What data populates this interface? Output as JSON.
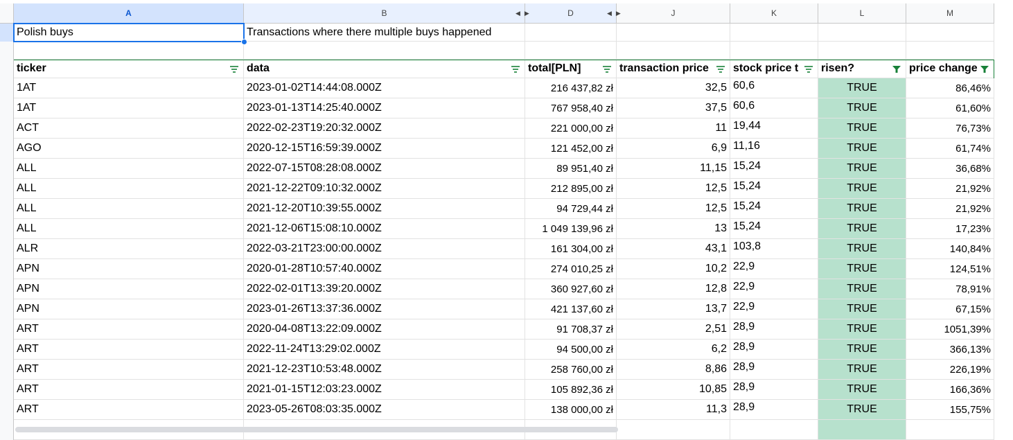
{
  "columns": [
    {
      "letter": "A"
    },
    {
      "letter": "B"
    },
    {
      "letter": "D"
    },
    {
      "letter": "J"
    },
    {
      "letter": "K"
    },
    {
      "letter": "L"
    },
    {
      "letter": "M"
    }
  ],
  "row1": {
    "a": "Polish buys",
    "b": "Transactions where there multiple buys happened"
  },
  "headers": [
    "ticker",
    "data",
    "total[PLN]",
    "transaction price",
    "stock price t",
    "risen?",
    "price change"
  ],
  "rows": [
    [
      "1AT",
      "2023-01-02T14:44:08.000Z",
      "216 437,82 zł",
      "32,5",
      "60,6",
      "TRUE",
      "86,46%"
    ],
    [
      "1AT",
      "2023-01-13T14:25:40.000Z",
      "767 958,40 zł",
      "37,5",
      "60,6",
      "TRUE",
      "61,60%"
    ],
    [
      "ACT",
      "2022-02-23T19:20:32.000Z",
      "221 000,00 zł",
      "11",
      "19,44",
      "TRUE",
      "76,73%"
    ],
    [
      "AGO",
      "2020-12-15T16:59:39.000Z",
      "121 452,00 zł",
      "6,9",
      "11,16",
      "TRUE",
      "61,74%"
    ],
    [
      "ALL",
      "2022-07-15T08:28:08.000Z",
      "89 951,40 zł",
      "11,15",
      "15,24",
      "TRUE",
      "36,68%"
    ],
    [
      "ALL",
      "2021-12-22T09:10:32.000Z",
      "212 895,00 zł",
      "12,5",
      "15,24",
      "TRUE",
      "21,92%"
    ],
    [
      "ALL",
      "2021-12-20T10:39:55.000Z",
      "94 729,44 zł",
      "12,5",
      "15,24",
      "TRUE",
      "21,92%"
    ],
    [
      "ALL",
      "2021-12-06T15:08:10.000Z",
      "1 049 139,96 zł",
      "13",
      "15,24",
      "TRUE",
      "17,23%"
    ],
    [
      "ALR",
      "2022-03-21T23:00:00.000Z",
      "161 304,00 zł",
      "43,1",
      "103,8",
      "TRUE",
      "140,84%"
    ],
    [
      "APN",
      "2020-01-28T10:57:40.000Z",
      "274 010,25 zł",
      "10,2",
      "22,9",
      "TRUE",
      "124,51%"
    ],
    [
      "APN",
      "2022-02-01T13:39:20.000Z",
      "360 927,60 zł",
      "12,8",
      "22,9",
      "TRUE",
      "78,91%"
    ],
    [
      "APN",
      "2023-01-26T13:37:36.000Z",
      "421 137,60 zł",
      "13,7",
      "22,9",
      "TRUE",
      "67,15%"
    ],
    [
      "ART",
      "2020-04-08T13:22:09.000Z",
      "91 708,37 zł",
      "2,51",
      "28,9",
      "TRUE",
      "1051,39%"
    ],
    [
      "ART",
      "2022-11-24T13:29:02.000Z",
      "94 500,00 zł",
      "6,2",
      "28,9",
      "TRUE",
      "366,13%"
    ],
    [
      "ART",
      "2021-12-23T10:53:48.000Z",
      "258 760,00 zł",
      "8,86",
      "28,9",
      "TRUE",
      "226,19%"
    ],
    [
      "ART",
      "2021-01-15T12:03:23.000Z",
      "105 892,36 zł",
      "10,85",
      "28,9",
      "TRUE",
      "166,36%"
    ],
    [
      "ART",
      "2023-05-26T08:03:35.000Z",
      "138 000,00 zł",
      "11,3",
      "28,9",
      "TRUE",
      "155,75%"
    ]
  ],
  "colors": {
    "risen_fill": "#b7e1cd",
    "selection": "#1a73e8",
    "filter_icon": "#188038"
  }
}
